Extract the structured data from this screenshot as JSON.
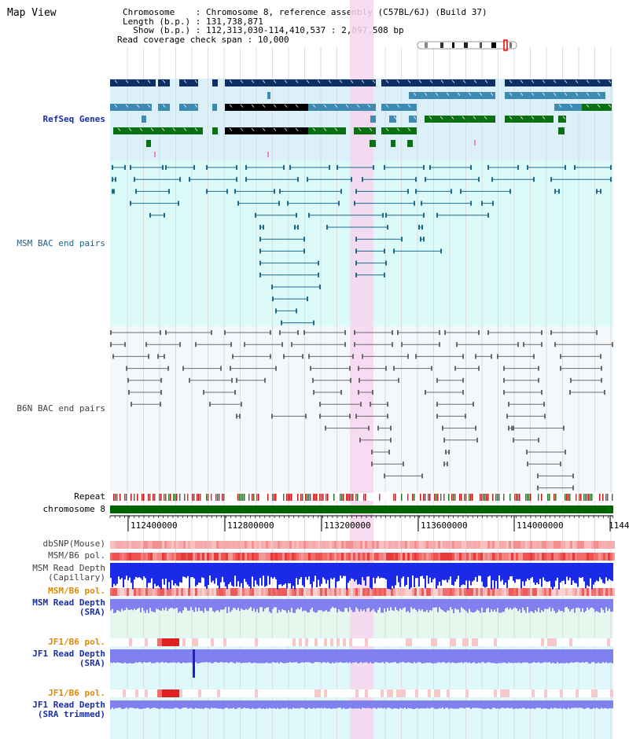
{
  "title": "Map View",
  "info": {
    "chromosome_label": "Chromosome",
    "chromosome_value": "Chromosome 8, reference assembly (C57BL/6J) (Build 37)",
    "length_label": "Length (b.p.)",
    "length_value": "131,738,871",
    "show_label": "Show (b.p.)",
    "show_value": "112,313,030-114,410,537 : 2,097,508 bp",
    "coverage_label": "Read coverage check span",
    "coverage_value": "10,000"
  },
  "tracks": {
    "refseq": "RefSeq Genes",
    "msm_bac": "MSM BAC end pairs",
    "b6n_bac": "B6N BAC end pairs",
    "repeat": "Repeat",
    "chromosome": "chromosome 8",
    "dbsnp": "dbSNP(Mouse)",
    "msm_b6_pol_1": "MSM/B6 pol.",
    "msm_depth_cap_1": "MSM Read Depth",
    "msm_depth_cap_2": "(Capillary)",
    "msm_b6_pol_2": "MSM/B6 pol.",
    "msm_depth_sra_1": "MSM Read Depth",
    "msm_depth_sra_2": "(SRA)",
    "jf1_b6_pol_1": "JF1/B6 pol.",
    "jf1_depth_sra_1": "JF1 Read Depth",
    "jf1_depth_sra_2": "(SRA)",
    "jf1_b6_pol_2": "JF1/B6 pol.",
    "jf1_depth_trim_1": "JF1 Read Depth",
    "jf1_depth_trim_2": "(SRA trimmed)"
  },
  "axis": {
    "ticks": [
      "112400000",
      "112800000",
      "113200000",
      "113600000",
      "114000000",
      "1144"
    ]
  },
  "colors": {
    "highlight": "#f7d6f0",
    "refseq_bg": "#dcf0fa",
    "msm_bg": "#dcfaf8",
    "gene_dark": "#0d2f63",
    "gene_mid": "#3d8ab3",
    "gene_green": "#0a7012",
    "chromosome_bar": "#006400",
    "depth_blue": "#1a2ae6",
    "depth_light": "#8080f0"
  }
}
